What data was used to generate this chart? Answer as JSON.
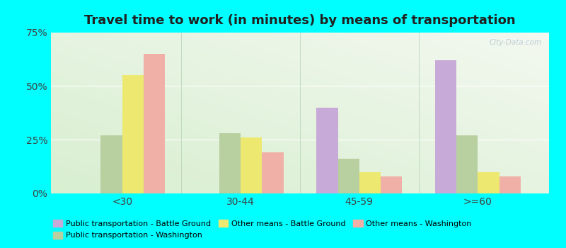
{
  "title": "Travel time to work (in minutes) by means of transportation",
  "categories": [
    "<30",
    "30-44",
    "45-59",
    ">=60"
  ],
  "series": {
    "Public transportation - Battle Ground": [
      0,
      0,
      40,
      62
    ],
    "Public transportation - Washington": [
      27,
      28,
      16,
      27
    ],
    "Other means - Battle Ground": [
      55,
      26,
      10,
      10
    ],
    "Other means - Washington": [
      65,
      19,
      8,
      8
    ]
  },
  "colors": {
    "Public transportation - Battle Ground": "#c8aad8",
    "Public transportation - Washington": "#b8cfa0",
    "Other means - Battle Ground": "#ece870",
    "Other means - Washington": "#f0b0a8"
  },
  "ylim": [
    0,
    75
  ],
  "yticks": [
    0,
    25,
    50,
    75
  ],
  "yticklabels": [
    "0%",
    "25%",
    "50%",
    "75%"
  ],
  "outer_background": "#00ffff",
  "grid_color": "#ffffff",
  "title_fontsize": 13,
  "bar_width": 0.18,
  "legend_order": [
    "Public transportation - Battle Ground",
    "Public transportation - Washington",
    "Other means - Battle Ground",
    "Other means - Washington"
  ]
}
